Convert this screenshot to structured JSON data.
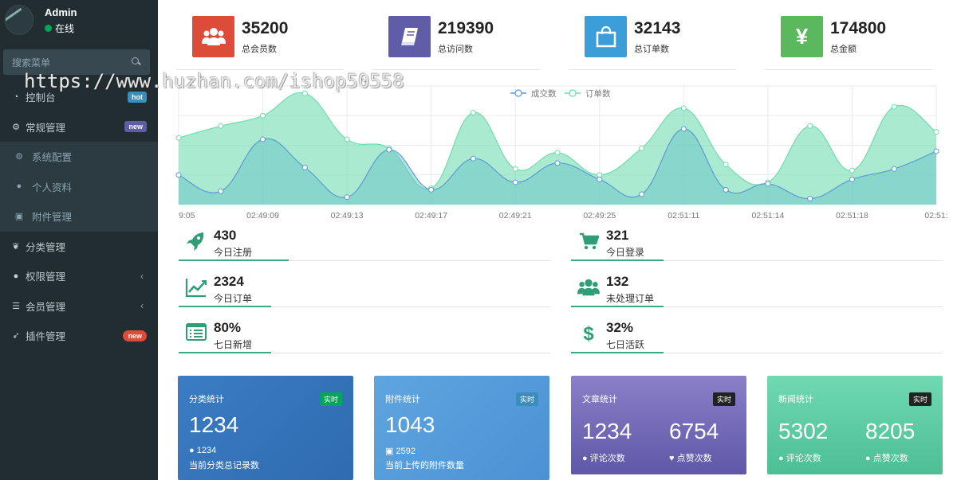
{
  "sidebar": {
    "user": {
      "name": "Admin",
      "status": "在线"
    },
    "search_placeholder": "搜索菜单",
    "items": [
      {
        "icon": "dashboard-icon",
        "label": "控制台",
        "badge": "hot"
      },
      {
        "icon": "cogs-icon",
        "label": "常规管理",
        "badge": "new"
      },
      {
        "icon": "gear-icon",
        "label": "系统配置",
        "sub": true
      },
      {
        "icon": "user-icon",
        "label": "个人资料",
        "sub": true
      },
      {
        "icon": "image-icon",
        "label": "附件管理",
        "sub": true
      },
      {
        "icon": "leaf-icon",
        "label": "分类管理"
      },
      {
        "icon": "group-icon",
        "label": "权限管理",
        "chevron": "‹"
      },
      {
        "icon": "list-icon",
        "label": "会员管理",
        "chevron": "‹"
      },
      {
        "icon": "rocket-icon",
        "label": "插件管理",
        "badge": "new"
      }
    ]
  },
  "watermark": "https://www.huzhan.com/ishop50558",
  "stats": [
    {
      "value": "35200",
      "label": "总会员数",
      "color": "#dd4b39",
      "icon": "users-icon"
    },
    {
      "value": "219390",
      "label": "总访问数",
      "color": "#605ca8",
      "icon": "book-icon"
    },
    {
      "value": "32143",
      "label": "总订单数",
      "color": "#3c9ed8",
      "icon": "shopping-bag-icon"
    },
    {
      "value": "174800",
      "label": "总金额",
      "color": "#5cb85c",
      "icon": "yen-icon"
    }
  ],
  "chart_data": {
    "type": "area",
    "legend": [
      "成交数",
      "订单数"
    ],
    "x_ticks": [
      "9:05",
      "02:49:09",
      "02:49:13",
      "02:49:17",
      "02:49:21",
      "02:49:25",
      "02:51:11",
      "02:51:14",
      "02:51:18",
      "02:51:"
    ],
    "series": [
      {
        "name": "成交数",
        "color": "#5b9bd5",
        "values": [
          20,
          9,
          44,
          25,
          5,
          37,
          10,
          31,
          15,
          28,
          17,
          7,
          51,
          10,
          14,
          4,
          17,
          24,
          36
        ]
      },
      {
        "name": "订单数",
        "color": "#6fdcb0",
        "values": [
          45,
          53,
          60,
          75,
          44,
          38,
          11,
          62,
          24,
          35,
          20,
          38,
          65,
          27,
          15,
          53,
          23,
          66,
          49
        ]
      }
    ],
    "ylim": [
      0,
      80
    ]
  },
  "mini_stats": [
    {
      "value": "430",
      "label": "今日注册",
      "icon": "rocket-icon"
    },
    {
      "value": "321",
      "label": "今日登录",
      "icon": "cart-icon"
    },
    {
      "value": "2324",
      "label": "今日订单",
      "icon": "line-chart-icon"
    },
    {
      "value": "132",
      "label": "未处理订单",
      "icon": "users-icon"
    },
    {
      "value": "80%",
      "label": "七日新增",
      "icon": "list-alt-icon"
    },
    {
      "value": "32%",
      "label": "七日活跃",
      "icon": "dollar-icon"
    }
  ],
  "cards": [
    {
      "title": "分类统计",
      "tag": "实时",
      "value": "1234",
      "sub_value": "1234",
      "desc": "当前分类总记录数",
      "tag_color": "#00a65a"
    },
    {
      "title": "附件统计",
      "tag": "实时",
      "value": "1043",
      "sub_value": "2592",
      "desc": "当前上传的附件数量",
      "tag_color": "#3c8dbc"
    },
    {
      "title": "文章统计",
      "tag": "实时",
      "value1": "1234",
      "label1": "评论次数",
      "value2": "6754",
      "label2": "点赞次数",
      "tag_color": "#222"
    },
    {
      "title": "新闻统计",
      "tag": "实时",
      "value1": "5302",
      "label1": "评论次数",
      "value2": "8205",
      "label2": "点赞次数",
      "tag_color": "#222"
    }
  ]
}
